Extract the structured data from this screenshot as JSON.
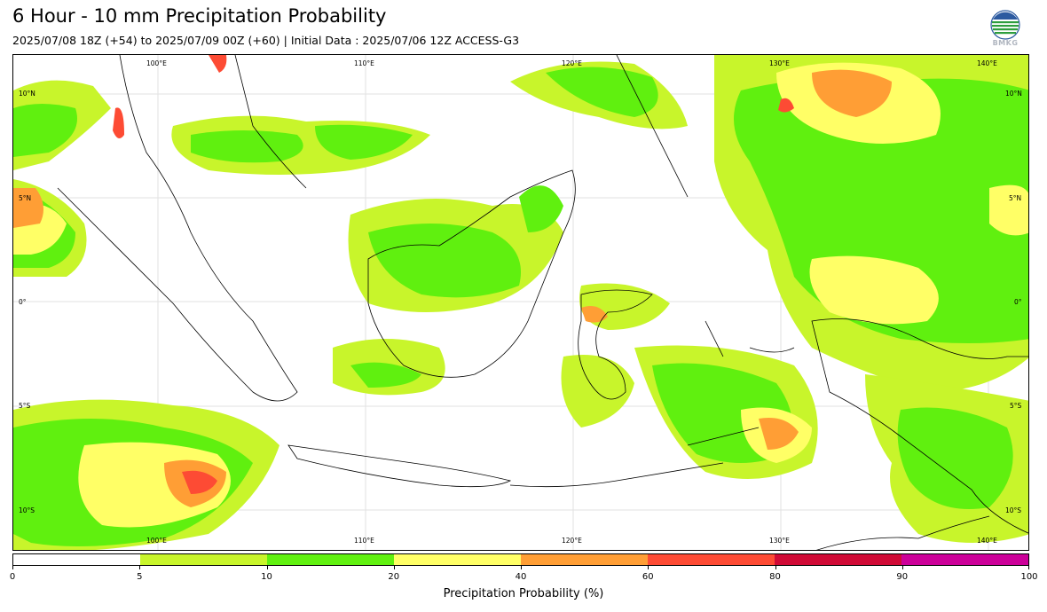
{
  "header": {
    "title": "6 Hour - 10 mm Precipitation Probability",
    "subtitle": "2025/07/08 18Z (+54) to 2025/07/09 00Z (+60) | Initial Data : 2025/07/06 12Z ACCESS-G3",
    "logo_text": "BMKG"
  },
  "map": {
    "longitude_labels": [
      "100°E",
      "110°E",
      "120°E",
      "130°E",
      "140°E"
    ],
    "latitude_labels": [
      "10°N",
      "5°N",
      "0°",
      "5°S",
      "10°S"
    ],
    "colors": {
      "land_outline": "#000000",
      "grid": "#d8d8d8"
    }
  },
  "colorbar": {
    "title": "Precipitation Probability (%)",
    "bins": [
      {
        "from": 0,
        "to": 5,
        "color": "#ffffff"
      },
      {
        "from": 5,
        "to": 10,
        "color": "#c8f52b"
      },
      {
        "from": 10,
        "to": 20,
        "color": "#60f00f"
      },
      {
        "from": 20,
        "to": 40,
        "color": "#ffff66"
      },
      {
        "from": 40,
        "to": 60,
        "color": "#ff9e35"
      },
      {
        "from": 60,
        "to": 80,
        "color": "#fd4b34"
      },
      {
        "from": 80,
        "to": 90,
        "color": "#d00a36"
      },
      {
        "from": 90,
        "to": 100,
        "color": "#cc0099"
      }
    ],
    "tick_labels": [
      "0",
      "5",
      "10",
      "20",
      "40",
      "60",
      "80",
      "90",
      "100"
    ]
  }
}
